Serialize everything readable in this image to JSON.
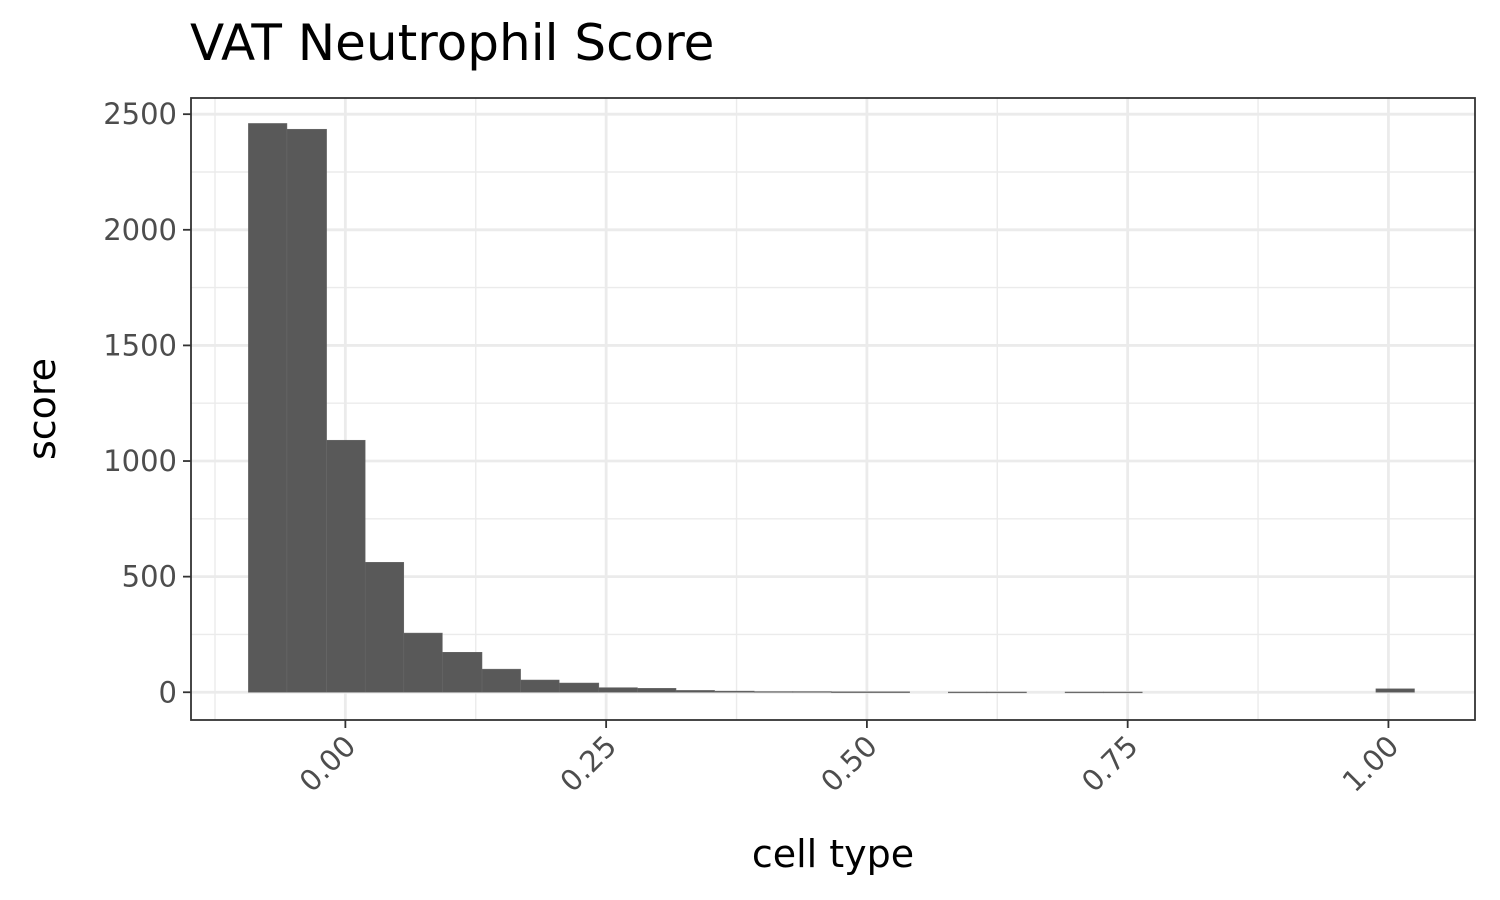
{
  "chart_data": {
    "type": "bar",
    "title": "VAT Neutrophil Score",
    "xlabel": "cell type",
    "ylabel": "score",
    "xlim": [
      -0.148,
      1.083
    ],
    "ylim": [
      -120,
      2570
    ],
    "x_ticks": [
      0.0,
      0.25,
      0.5,
      0.75,
      1.0
    ],
    "x_tick_labels": [
      "0.00",
      "0.25",
      "0.50",
      "0.75",
      "1.00"
    ],
    "y_ticks": [
      0,
      500,
      1000,
      1500,
      2000,
      2500
    ],
    "y_tick_labels": [
      "0",
      "500",
      "1000",
      "1500",
      "2000",
      "2500"
    ],
    "x_minor_ticks": [
      -0.125,
      0.125,
      0.375,
      0.625,
      0.875
    ],
    "y_minor_ticks": [
      250,
      750,
      1250,
      1750,
      2250
    ],
    "grid": true,
    "bar_color": "#595959",
    "bins": [
      {
        "x0": -0.093,
        "x1": -0.056,
        "count": 2460
      },
      {
        "x0": -0.056,
        "x1": -0.018,
        "count": 2435
      },
      {
        "x0": -0.018,
        "x1": 0.019,
        "count": 1090
      },
      {
        "x0": 0.019,
        "x1": 0.056,
        "count": 562
      },
      {
        "x0": 0.056,
        "x1": 0.093,
        "count": 256
      },
      {
        "x0": 0.093,
        "x1": 0.131,
        "count": 173
      },
      {
        "x0": 0.131,
        "x1": 0.168,
        "count": 100
      },
      {
        "x0": 0.168,
        "x1": 0.205,
        "count": 53
      },
      {
        "x0": 0.205,
        "x1": 0.243,
        "count": 40
      },
      {
        "x0": 0.243,
        "x1": 0.28,
        "count": 20
      },
      {
        "x0": 0.28,
        "x1": 0.317,
        "count": 17
      },
      {
        "x0": 0.317,
        "x1": 0.354,
        "count": 8
      },
      {
        "x0": 0.354,
        "x1": 0.392,
        "count": 5
      },
      {
        "x0": 0.392,
        "x1": 0.429,
        "count": 3
      },
      {
        "x0": 0.429,
        "x1": 0.466,
        "count": 3
      },
      {
        "x0": 0.466,
        "x1": 0.504,
        "count": 2
      },
      {
        "x0": 0.504,
        "x1": 0.541,
        "count": 2
      },
      {
        "x0": 0.578,
        "x1": 0.615,
        "count": 1
      },
      {
        "x0": 0.615,
        "x1": 0.653,
        "count": 1
      },
      {
        "x0": 0.69,
        "x1": 0.727,
        "count": 1
      },
      {
        "x0": 0.727,
        "x1": 0.764,
        "count": 1
      },
      {
        "x0": 0.988,
        "x1": 1.025,
        "count": 15
      }
    ]
  }
}
